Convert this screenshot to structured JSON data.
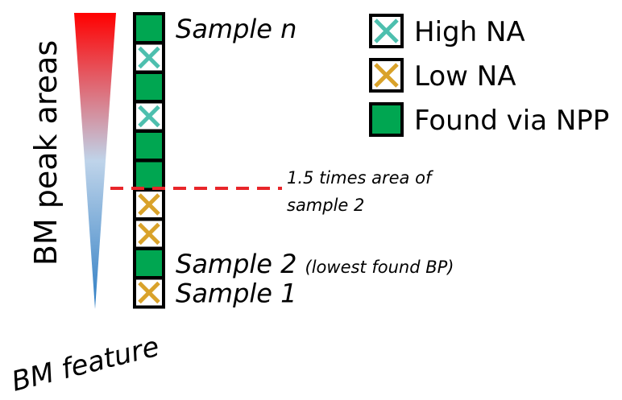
{
  "colors": {
    "gradient_top": "#ff0000",
    "gradient_mid": "#bfd4ea",
    "gradient_bottom": "#2f7ec4",
    "found": "#00a651",
    "high_na": "#4dbfae",
    "low_na": "#d9a22a",
    "threshold_line": "#e8262a",
    "cell_border": "#000000"
  },
  "axis": {
    "y_label": "BM peak areas",
    "x_label": "BM feature"
  },
  "samples": [
    {
      "type": "found",
      "label": "Sample n",
      "note": ""
    },
    {
      "type": "high",
      "label": "",
      "note": ""
    },
    {
      "type": "found",
      "label": "",
      "note": ""
    },
    {
      "type": "high",
      "label": "",
      "note": ""
    },
    {
      "type": "found",
      "label": "",
      "note": ""
    },
    {
      "type": "found",
      "label": "",
      "note": ""
    },
    {
      "type": "low",
      "label": "",
      "note": ""
    },
    {
      "type": "low",
      "label": "",
      "note": ""
    },
    {
      "type": "found",
      "label": "Sample 2",
      "note": "(lowest found BP)"
    },
    {
      "type": "low",
      "label": "Sample 1",
      "note": ""
    }
  ],
  "threshold": {
    "after_index": 6,
    "label_line1": "1.5 times area of",
    "label_line2": "sample 2"
  },
  "legend": [
    {
      "type": "high",
      "label": "High NA"
    },
    {
      "type": "low",
      "label": "Low NA"
    },
    {
      "type": "found",
      "label": "Found via NPP"
    }
  ]
}
